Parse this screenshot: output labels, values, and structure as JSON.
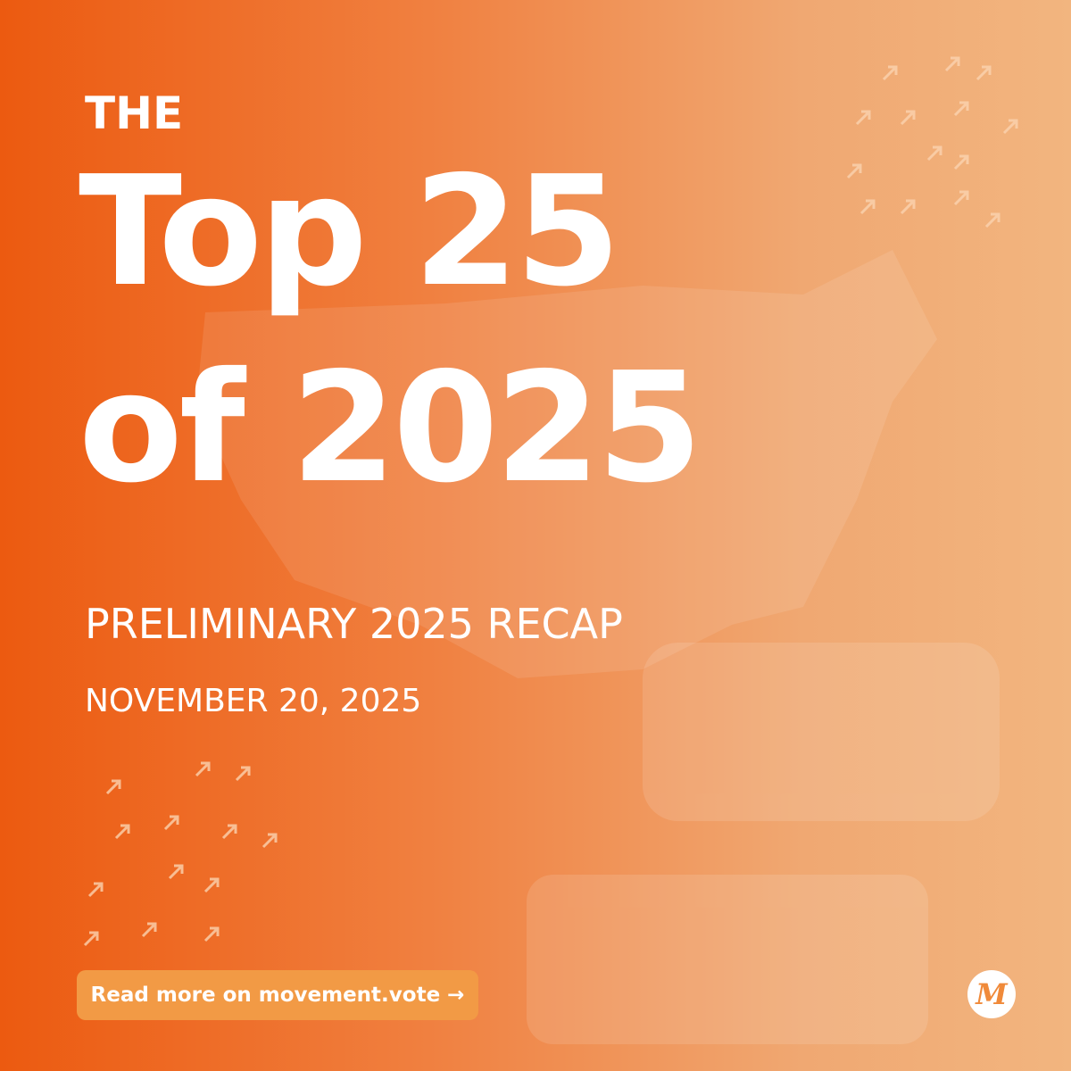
{
  "header": {
    "kicker": "THE",
    "title_line1": "Top 25",
    "title_line2": "of 2025"
  },
  "subtitle": "PRELIMINARY 2025 RECAP",
  "date": "NOVEMBER 20, 2025",
  "button": "Read more on movement.vote →",
  "logo": "M"
}
